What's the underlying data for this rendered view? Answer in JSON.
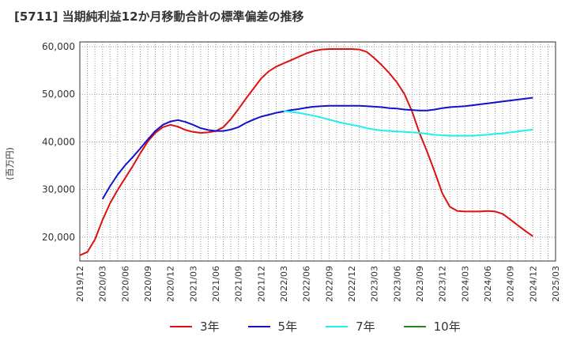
{
  "title": "[5711]  当期純利益12か月移動合計の標準偏差の推移",
  "chart_data": {
    "type": "line",
    "title": "[5711]  当期純利益12か月移動合計の標準偏差の推移",
    "ylabel": "(百万円)",
    "xlabel": "",
    "ylim": [
      15000,
      61000
    ],
    "yticks": [
      20000,
      30000,
      40000,
      50000,
      60000
    ],
    "ytick_labels": [
      "20,000",
      "30,000",
      "40,000",
      "50,000",
      "60,000"
    ],
    "xticks": [
      "2019/12",
      "2020/03",
      "2020/06",
      "2020/09",
      "2020/12",
      "2021/03",
      "2021/06",
      "2021/09",
      "2021/12",
      "2022/03",
      "2022/06",
      "2022/09",
      "2022/12",
      "2023/03",
      "2023/06",
      "2023/09",
      "2023/12",
      "2024/03",
      "2024/06",
      "2024/09",
      "2024/12",
      "2025/03"
    ],
    "grid": true,
    "legend_position": "bottom",
    "x_months": [
      "2019/12",
      "2020/01",
      "2020/02",
      "2020/03",
      "2020/04",
      "2020/05",
      "2020/06",
      "2020/07",
      "2020/08",
      "2020/09",
      "2020/10",
      "2020/11",
      "2020/12",
      "2021/01",
      "2021/02",
      "2021/03",
      "2021/04",
      "2021/05",
      "2021/06",
      "2021/07",
      "2021/08",
      "2021/09",
      "2021/10",
      "2021/11",
      "2021/12",
      "2022/01",
      "2022/02",
      "2022/03",
      "2022/04",
      "2022/05",
      "2022/06",
      "2022/07",
      "2022/08",
      "2022/09",
      "2022/10",
      "2022/11",
      "2022/12",
      "2023/01",
      "2023/02",
      "2023/03",
      "2023/04",
      "2023/05",
      "2023/06",
      "2023/07",
      "2023/08",
      "2023/09",
      "2023/10",
      "2023/11",
      "2023/12",
      "2024/01",
      "2024/02",
      "2024/03",
      "2024/04",
      "2024/05",
      "2024/06",
      "2024/07",
      "2024/08",
      "2024/09",
      "2024/10",
      "2024/11",
      "2024/12"
    ],
    "series": [
      {
        "name": "3年",
        "color": "#dd1111",
        "values": [
          16200,
          16900,
          19500,
          23600,
          27100,
          29900,
          32400,
          34900,
          37600,
          40100,
          41900,
          43100,
          43600,
          43200,
          42500,
          42100,
          41900,
          42000,
          42300,
          43100,
          44800,
          46900,
          49100,
          51200,
          53300,
          54800,
          55800,
          56500,
          57200,
          57900,
          58600,
          59100,
          59400,
          59500,
          59500,
          59500,
          59500,
          59400,
          58900,
          57600,
          56100,
          54400,
          52500,
          50000,
          46400,
          41800,
          37900,
          33700,
          29200,
          26400,
          25500,
          25400,
          25400,
          25400,
          25500,
          25400,
          24900,
          23700,
          22500,
          21300,
          20200
        ]
      },
      {
        "name": "5年",
        "color": "#1111cc",
        "values": [
          null,
          null,
          null,
          28000,
          30700,
          33100,
          35100,
          36800,
          38600,
          40500,
          42300,
          43600,
          44300,
          44600,
          44200,
          43600,
          42900,
          42500,
          42300,
          42300,
          42600,
          43100,
          44000,
          44700,
          45300,
          45700,
          46100,
          46400,
          46700,
          46900,
          47200,
          47400,
          47500,
          47600,
          47600,
          47600,
          47600,
          47600,
          47500,
          47400,
          47300,
          47100,
          47000,
          46800,
          46700,
          46600,
          46600,
          46800,
          47100,
          47300,
          47400,
          47500,
          47700,
          47900,
          48100,
          48300,
          48500,
          48700,
          48900,
          49100,
          49300
        ]
      },
      {
        "name": "7年",
        "color": "#22eeee",
        "values": [
          null,
          null,
          null,
          null,
          null,
          null,
          null,
          null,
          null,
          null,
          null,
          null,
          null,
          null,
          null,
          null,
          null,
          null,
          null,
          null,
          null,
          null,
          null,
          null,
          null,
          null,
          null,
          46500,
          46300,
          46100,
          45800,
          45500,
          45100,
          44700,
          44300,
          43900,
          43600,
          43300,
          42900,
          42600,
          42400,
          42300,
          42200,
          42100,
          42000,
          41900,
          41700,
          41500,
          41400,
          41300,
          41300,
          41300,
          41300,
          41400,
          41500,
          41700,
          41800,
          42000,
          42200,
          42400,
          42600
        ]
      },
      {
        "name": "10年",
        "color": "#228822",
        "values": []
      }
    ]
  }
}
